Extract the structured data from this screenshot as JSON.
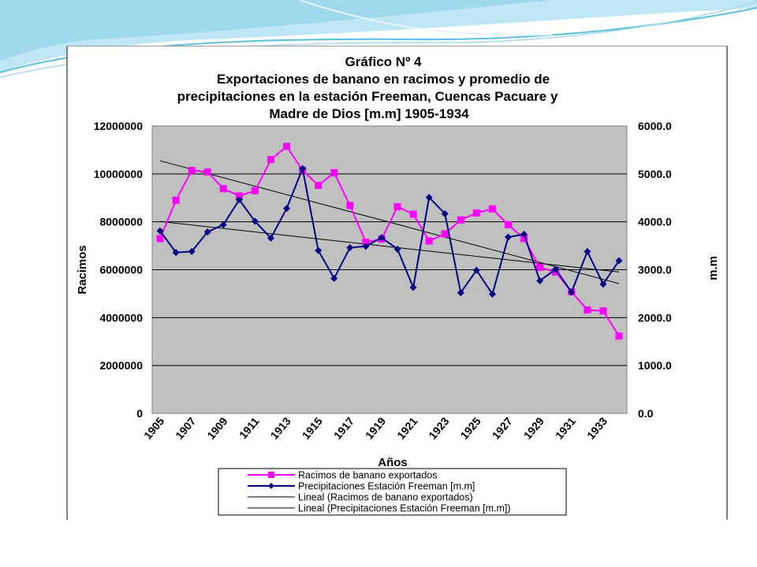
{
  "colors": {
    "plot_bg": "#c0c0c0",
    "racimos": "#ff00ff",
    "precip": "#000080",
    "trend": "#000000",
    "slide_wave": "#5bc0de"
  },
  "chart_data": {
    "type": "line",
    "title_lines": [
      "Gráfico Nº 4",
      "Exportaciones de banano en racimos y promedio de",
      "precipitaciones en la estación Freeman,  Cuencas Pacuare y",
      "Madre de Dios [m.m] 1905-1934"
    ],
    "xlabel": "Años",
    "ylabel": "Racimos",
    "y2label": "m.m",
    "x": [
      1905,
      1906,
      1907,
      1908,
      1909,
      1910,
      1911,
      1912,
      1913,
      1914,
      1915,
      1916,
      1917,
      1918,
      1919,
      1920,
      1921,
      1922,
      1923,
      1924,
      1925,
      1926,
      1927,
      1928,
      1929,
      1930,
      1931,
      1932,
      1933,
      1934
    ],
    "x_tick_labels": [
      "1905",
      "1907",
      "1909",
      "1911",
      "1913",
      "1915",
      "1917",
      "1919",
      "1921",
      "1923",
      "1925",
      "1927",
      "1929",
      "1931",
      "1933"
    ],
    "ylim": [
      0,
      12000000
    ],
    "y_ticks": [
      "0",
      "2000000",
      "4000000",
      "6000000",
      "8000000",
      "10000000",
      "12000000"
    ],
    "y2lim": [
      0,
      6000
    ],
    "y2_ticks": [
      "0.0",
      "1000.0",
      "2000.0",
      "3000.0",
      "4000.0",
      "5000.0",
      "6000.0"
    ],
    "grid": "horizontal",
    "legend_position": "bottom",
    "series": [
      {
        "name": "Racimos de banano exportados",
        "axis": "left",
        "marker": "square",
        "values": [
          7300000,
          8900000,
          10150000,
          10080000,
          9380000,
          9080000,
          9300000,
          10600000,
          11150000,
          10150000,
          9520000,
          10050000,
          8680000,
          7150000,
          7280000,
          8630000,
          8320000,
          7200000,
          7500000,
          8080000,
          8370000,
          8540000,
          7880000,
          7300000,
          6100000,
          5900000,
          5080000,
          4320000,
          4280000,
          3230000
        ]
      },
      {
        "name": "Precipitaciones Estación Freeman [m.m]",
        "axis": "right",
        "marker": "diamond",
        "values": [
          3810,
          3360,
          3380,
          3790,
          3940,
          4460,
          4010,
          3660,
          4280,
          5110,
          3400,
          2820,
          3460,
          3490,
          3670,
          3430,
          2630,
          4510,
          4170,
          2520,
          2990,
          2490,
          3680,
          3740,
          2770,
          3010,
          2530,
          3380,
          2700,
          3190
        ]
      },
      {
        "name": "Lineal (Racimos de banano exportados)",
        "axis": "left",
        "trend_of": 0
      },
      {
        "name": "Lineal (Precipitaciones Estación Freeman [m.m])",
        "axis": "right",
        "trend_of": 1
      }
    ]
  }
}
